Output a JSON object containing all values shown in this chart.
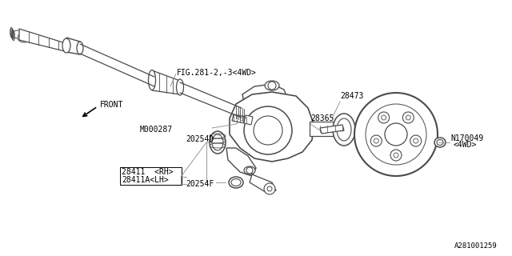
{
  "bg_color": "#ffffff",
  "fig_width": 6.4,
  "fig_height": 3.2,
  "dpi": 100,
  "labels": {
    "fig_ref": "FIG.281-2,-3<4WD>",
    "front": "FRONT",
    "m000287": "M000287",
    "part_28411rh": "28411  <RH>",
    "part_28411lh": "28411A<LH>",
    "part_20254d": "20254D",
    "part_20254f": "20254F",
    "part_28473": "28473",
    "part_28365": "28365",
    "part_n170049": "N170049",
    "part_4wd": "<4WD>",
    "diagram_id": "A281001259"
  },
  "stroke": "#4a4a4a",
  "thin": "#5a5a5a"
}
